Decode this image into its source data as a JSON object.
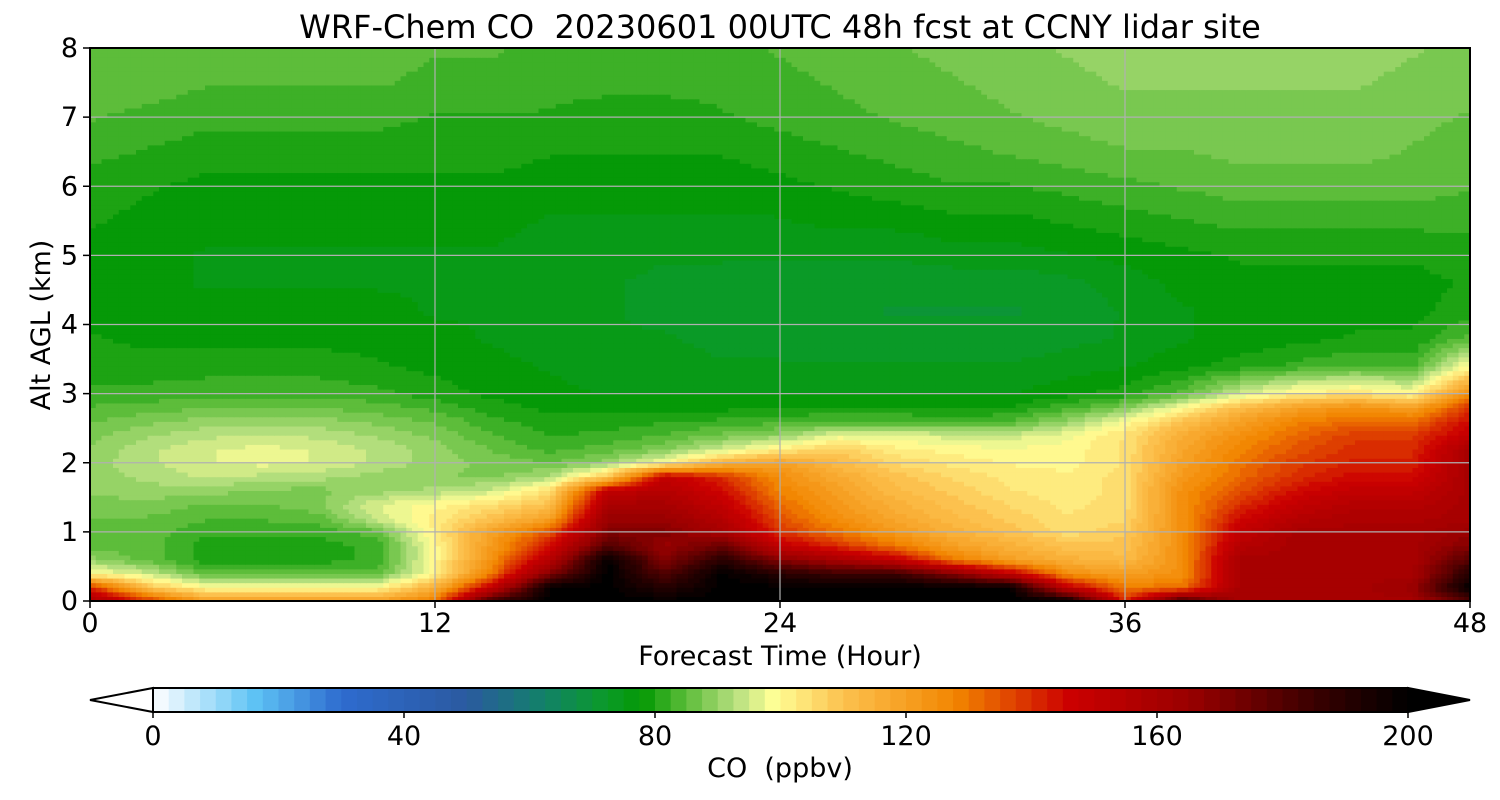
{
  "chart_data": {
    "type": "heatmap",
    "subtype": "filled-contour time-height cross section",
    "title": "WRF-Chem CO  20230601 00UTC 48h fcst at CCNY lidar site",
    "xlabel": "Forecast Time (Hour)",
    "ylabel": "Alt AGL (km)",
    "xlim": [
      0,
      48
    ],
    "ylim": [
      0,
      8
    ],
    "xticks": [
      0,
      12,
      24,
      36,
      48
    ],
    "yticks": [
      0,
      1,
      2,
      3,
      4,
      5,
      6,
      7,
      8
    ],
    "grid": true,
    "x_hours": [
      0,
      2,
      4,
      6,
      8,
      10,
      12,
      14,
      16,
      18,
      20,
      22,
      24,
      26,
      28,
      30,
      32,
      34,
      36,
      38,
      40,
      42,
      44,
      46,
      48
    ],
    "z_levels_km": [
      0,
      0.2,
      0.4,
      0.6,
      0.8,
      1.0,
      1.2,
      1.4,
      1.6,
      1.8,
      2.0,
      2.2,
      2.4,
      2.6,
      2.8,
      3.0,
      3.4,
      3.8,
      4.2,
      4.6,
      5.0,
      5.5,
      6.0,
      6.5,
      7.0,
      7.5,
      8.0
    ],
    "values_ppbv": [
      [
        160,
        140,
        120,
        120,
        120,
        120,
        130,
        185,
        200,
        200,
        200,
        200,
        200,
        200,
        200,
        200,
        200,
        200,
        140,
        185,
        160,
        160,
        160,
        160,
        180
      ],
      [
        140,
        110,
        100,
        100,
        100,
        100,
        115,
        150,
        200,
        200,
        190,
        200,
        200,
        200,
        200,
        200,
        200,
        150,
        130,
        130,
        160,
        160,
        160,
        165,
        200
      ],
      [
        100,
        95,
        85,
        85,
        85,
        85,
        100,
        130,
        170,
        200,
        180,
        200,
        190,
        185,
        185,
        170,
        150,
        125,
        120,
        125,
        160,
        160,
        160,
        160,
        190
      ],
      [
        90,
        85,
        80,
        80,
        80,
        82,
        100,
        125,
        155,
        200,
        170,
        190,
        170,
        160,
        150,
        130,
        120,
        115,
        112,
        125,
        160,
        160,
        160,
        160,
        180
      ],
      [
        85,
        85,
        80,
        80,
        80,
        82,
        100,
        122,
        145,
        180,
        165,
        175,
        150,
        140,
        130,
        120,
        115,
        110,
        110,
        125,
        155,
        160,
        160,
        160,
        170
      ],
      [
        85,
        85,
        82,
        82,
        82,
        85,
        102,
        120,
        135,
        170,
        170,
        160,
        140,
        130,
        122,
        115,
        110,
        105,
        108,
        125,
        150,
        160,
        160,
        160,
        165
      ],
      [
        86,
        86,
        84,
        84,
        85,
        95,
        102,
        110,
        120,
        165,
        165,
        155,
        135,
        125,
        118,
        112,
        108,
        104,
        106,
        125,
        145,
        155,
        158,
        158,
        160
      ],
      [
        88,
        88,
        86,
        86,
        88,
        96,
        100,
        105,
        110,
        160,
        160,
        150,
        132,
        122,
        115,
        110,
        106,
        103,
        105,
        125,
        140,
        150,
        155,
        155,
        160
      ],
      [
        89,
        90,
        90,
        88,
        88,
        90,
        92,
        95,
        105,
        150,
        155,
        145,
        128,
        120,
        112,
        108,
        104,
        102,
        105,
        125,
        135,
        145,
        150,
        150,
        160
      ],
      [
        90,
        92,
        94,
        93,
        92,
        90,
        89,
        88,
        92,
        110,
        150,
        140,
        125,
        117,
        110,
        106,
        103,
        102,
        105,
        122,
        132,
        140,
        145,
        145,
        160
      ],
      [
        90,
        93,
        96,
        97,
        96,
        93,
        90,
        88,
        86,
        90,
        100,
        115,
        120,
        112,
        106,
        103,
        101,
        100,
        104,
        120,
        130,
        138,
        142,
        142,
        160
      ],
      [
        89,
        93,
        96,
        97,
        96,
        93,
        90,
        86,
        83,
        85,
        88,
        95,
        102,
        108,
        102,
        100,
        99,
        100,
        104,
        118,
        128,
        135,
        140,
        140,
        160
      ],
      [
        88,
        91,
        93,
        94,
        93,
        91,
        88,
        84,
        81,
        82,
        84,
        87,
        90,
        97,
        97,
        95,
        95,
        98,
        104,
        116,
        125,
        132,
        138,
        138,
        150
      ],
      [
        86,
        88,
        90,
        90,
        90,
        88,
        86,
        82,
        80,
        80,
        81,
        82,
        83,
        84,
        84,
        83,
        84,
        90,
        99,
        110,
        120,
        128,
        132,
        132,
        145
      ],
      [
        84,
        85,
        86,
        86,
        86,
        85,
        83,
        80,
        78,
        78,
        78,
        78,
        79,
        79,
        79,
        78,
        79,
        83,
        88,
        100,
        112,
        120,
        125,
        120,
        140
      ],
      [
        82,
        82,
        83,
        83,
        83,
        82,
        80,
        78,
        77,
        76,
        76,
        76,
        76,
        76,
        76,
        76,
        76,
        78,
        80,
        85,
        95,
        102,
        104,
        100,
        125
      ],
      [
        80,
        80,
        80,
        80,
        80,
        79,
        78,
        77,
        76,
        75,
        75,
        74,
        74,
        74,
        74,
        74,
        74,
        75,
        76,
        78,
        80,
        82,
        84,
        83,
        100
      ],
      [
        79,
        78,
        78,
        78,
        78,
        78,
        77,
        76,
        75,
        74,
        74,
        73,
        73,
        72,
        72,
        72,
        72,
        73,
        74,
        76,
        77,
        78,
        79,
        79,
        85
      ],
      [
        78,
        77,
        77,
        77,
        77,
        77,
        76,
        76,
        75,
        74,
        73,
        72,
        72,
        72,
        71,
        71,
        71,
        72,
        74,
        76,
        77,
        78,
        78,
        78,
        80
      ],
      [
        78,
        77,
        76,
        76,
        76,
        76,
        76,
        75,
        75,
        74,
        73,
        73,
        72,
        72,
        72,
        72,
        72,
        73,
        75,
        77,
        78,
        78,
        78,
        78,
        79
      ],
      [
        78,
        77,
        76,
        76,
        76,
        76,
        76,
        76,
        75,
        75,
        74,
        74,
        74,
        74,
        74,
        75,
        75,
        76,
        77,
        78,
        79,
        79,
        79,
        79,
        80
      ],
      [
        79,
        78,
        77,
        77,
        77,
        77,
        77,
        77,
        76,
        76,
        76,
        76,
        76,
        77,
        77,
        78,
        78,
        79,
        80,
        81,
        82,
        82,
        82,
        82,
        82
      ],
      [
        80,
        79,
        78,
        78,
        78,
        78,
        78,
        78,
        77,
        77,
        77,
        77,
        78,
        79,
        80,
        81,
        81,
        82,
        83,
        84,
        85,
        85,
        85,
        85,
        84
      ],
      [
        82,
        81,
        80,
        80,
        80,
        80,
        80,
        80,
        79,
        79,
        79,
        79,
        80,
        81,
        82,
        83,
        84,
        85,
        86,
        86,
        87,
        87,
        87,
        86,
        85
      ],
      [
        84,
        83,
        82,
        82,
        82,
        82,
        81,
        81,
        81,
        80,
        80,
        81,
        82,
        83,
        84,
        85,
        86,
        87,
        88,
        88,
        88,
        88,
        88,
        87,
        86
      ],
      [
        85,
        85,
        84,
        84,
        84,
        84,
        83,
        83,
        82,
        82,
        82,
        82,
        83,
        84,
        85,
        86,
        87,
        88,
        89,
        89,
        89,
        89,
        89,
        88,
        87
      ],
      [
        86,
        86,
        85,
        85,
        85,
        85,
        84,
        84,
        83,
        83,
        83,
        83,
        84,
        85,
        86,
        87,
        88,
        89,
        90,
        90,
        90,
        90,
        90,
        89,
        88
      ]
    ],
    "colorbar": {
      "label": "CO  (ppbv)",
      "vmin": 0,
      "vmax": 200,
      "ticks": [
        0,
        40,
        80,
        120,
        160,
        200
      ],
      "extend": "both",
      "orientation": "horizontal",
      "color_stops": [
        {
          "v": 0,
          "c": "#ffffff"
        },
        {
          "v": 16,
          "c": "#5fc4f5"
        },
        {
          "v": 30,
          "c": "#2e6bcf"
        },
        {
          "v": 50,
          "c": "#2b5aa0"
        },
        {
          "v": 62,
          "c": "#12806a"
        },
        {
          "v": 72,
          "c": "#0b9a2a"
        },
        {
          "v": 78,
          "c": "#049904"
        },
        {
          "v": 85,
          "c": "#5dbd3a"
        },
        {
          "v": 93,
          "c": "#b8e080"
        },
        {
          "v": 99,
          "c": "#ffff96"
        },
        {
          "v": 110,
          "c": "#fcc14e"
        },
        {
          "v": 128,
          "c": "#f28500"
        },
        {
          "v": 146,
          "c": "#cc0000"
        },
        {
          "v": 165,
          "c": "#9a0000"
        },
        {
          "v": 185,
          "c": "#3a0000"
        },
        {
          "v": 200,
          "c": "#000000"
        }
      ],
      "under_color": "#ffffff",
      "over_color": "#000000"
    }
  }
}
